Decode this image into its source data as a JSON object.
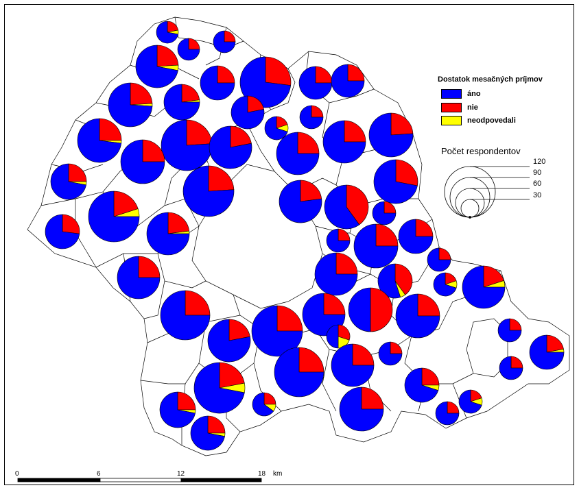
{
  "legend": {
    "title": "Dostatok mesačných príjmov",
    "items": [
      {
        "label": "áno",
        "color": "#0000ff"
      },
      {
        "label": "nie",
        "color": "#ff0000"
      },
      {
        "label": "neodpovedali",
        "color": "#ffff00"
      }
    ]
  },
  "size_legend": {
    "title": "Počet respondentov",
    "values": [
      "120",
      "90",
      "60",
      "30"
    ]
  },
  "scale_bar": {
    "ticks": [
      "0",
      "6",
      "12",
      "18"
    ],
    "unit": "km"
  }
}
